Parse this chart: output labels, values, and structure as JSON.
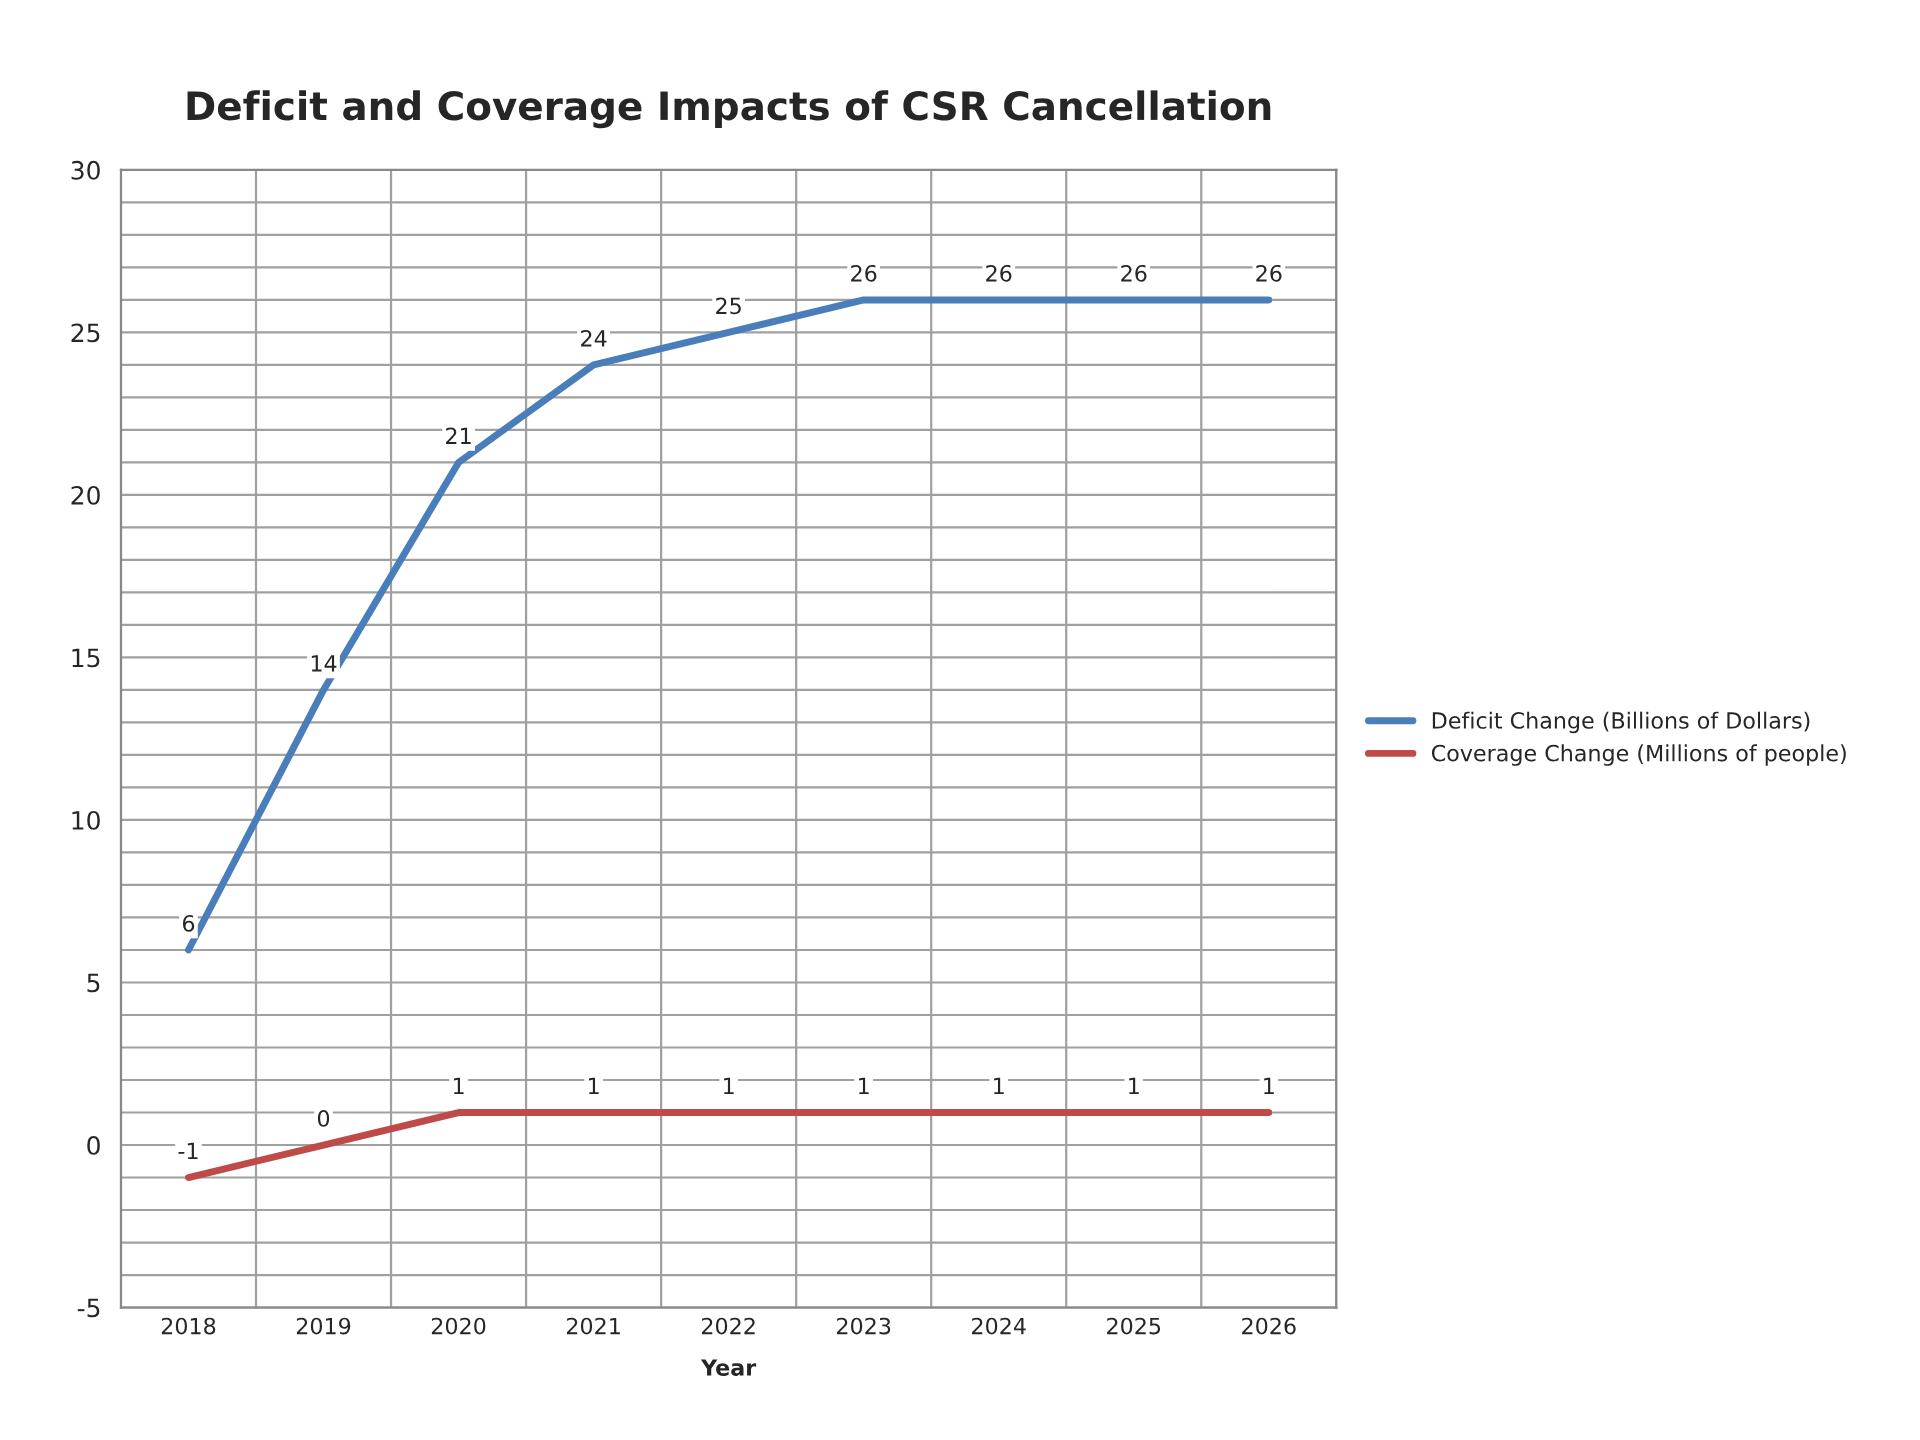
{
  "chart_data": {
    "type": "line",
    "title": "Deficit and Coverage Impacts of CSR Cancellation",
    "xlabel": "Year",
    "categories": [
      "2018",
      "2019",
      "2020",
      "2021",
      "2022",
      "2023",
      "2024",
      "2025",
      "2026"
    ],
    "series": [
      {
        "name": "Deficit Change (Billions of Dollars)",
        "color": "#4a7ebb",
        "values": [
          6,
          14,
          21,
          24,
          25,
          26,
          26,
          26,
          26
        ]
      },
      {
        "name": "Coverage Change (Millions of people)",
        "color": "#be4b48",
        "values": [
          -1,
          0,
          1,
          1,
          1,
          1,
          1,
          1,
          1
        ]
      }
    ],
    "ylim": [
      -5,
      30
    ],
    "yticks": [
      -5,
      0,
      5,
      10,
      15,
      20,
      25,
      30
    ],
    "grid": true,
    "legend": "right",
    "data_labels": true,
    "marker": "none",
    "line_style": "solid"
  }
}
